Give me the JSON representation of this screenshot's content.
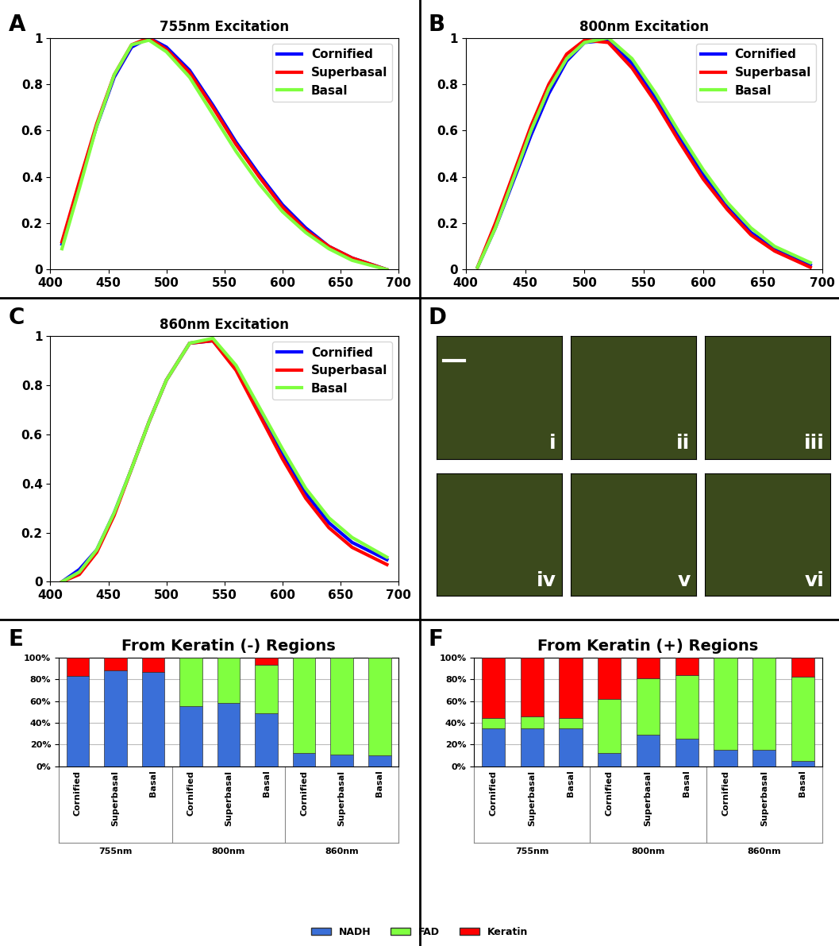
{
  "chart_data": [
    {
      "type": "line",
      "panel": "A",
      "title": "755nm Excitation",
      "x": [
        410,
        425,
        440,
        455,
        470,
        485,
        500,
        520,
        540,
        560,
        580,
        600,
        620,
        640,
        660,
        690
      ],
      "series": [
        {
          "name": "Cornified",
          "color": "#0000ff",
          "values": [
            0.11,
            0.37,
            0.62,
            0.83,
            0.96,
            1.0,
            0.96,
            0.86,
            0.71,
            0.55,
            0.41,
            0.28,
            0.18,
            0.1,
            0.05,
            0.0
          ]
        },
        {
          "name": "Superbasal",
          "color": "#ff0000",
          "values": [
            0.12,
            0.38,
            0.63,
            0.84,
            0.97,
            1.0,
            0.95,
            0.85,
            0.7,
            0.54,
            0.4,
            0.27,
            0.17,
            0.1,
            0.05,
            0.0
          ]
        },
        {
          "name": "Basal",
          "color": "#7fff3f",
          "values": [
            0.09,
            0.35,
            0.62,
            0.84,
            0.97,
            0.99,
            0.94,
            0.83,
            0.67,
            0.51,
            0.37,
            0.25,
            0.16,
            0.09,
            0.04,
            0.0
          ]
        }
      ],
      "xlim": [
        400,
        700
      ],
      "xticks": [
        400,
        450,
        500,
        550,
        600,
        650,
        700
      ],
      "ylim": [
        0,
        1
      ],
      "yticks": [
        0,
        0.2,
        0.4,
        0.6,
        0.8,
        1
      ],
      "legend": "upper right"
    },
    {
      "type": "line",
      "panel": "B",
      "title": "800nm Excitation",
      "x": [
        410,
        425,
        440,
        455,
        470,
        485,
        500,
        520,
        540,
        560,
        580,
        600,
        620,
        640,
        660,
        690
      ],
      "series": [
        {
          "name": "Cornified",
          "color": "#0000ff",
          "values": [
            0.01,
            0.18,
            0.38,
            0.58,
            0.76,
            0.9,
            0.98,
            0.99,
            0.89,
            0.74,
            0.57,
            0.41,
            0.27,
            0.16,
            0.09,
            0.02
          ]
        },
        {
          "name": "Superbasal",
          "color": "#ff0000",
          "values": [
            0.01,
            0.2,
            0.41,
            0.62,
            0.8,
            0.93,
            0.99,
            0.98,
            0.87,
            0.72,
            0.55,
            0.39,
            0.26,
            0.15,
            0.08,
            0.01
          ]
        },
        {
          "name": "Basal",
          "color": "#7fff3f",
          "values": [
            0.01,
            0.18,
            0.39,
            0.6,
            0.78,
            0.91,
            0.98,
            1.0,
            0.91,
            0.76,
            0.59,
            0.43,
            0.29,
            0.18,
            0.1,
            0.03
          ]
        }
      ],
      "xlim": [
        400,
        700
      ],
      "xticks": [
        400,
        450,
        500,
        550,
        600,
        650,
        700
      ],
      "ylim": [
        0,
        1
      ],
      "yticks": [
        0,
        0.2,
        0.4,
        0.6,
        0.8,
        1
      ],
      "legend": "upper right"
    },
    {
      "type": "line",
      "panel": "C",
      "title": "860nm Excitation",
      "x": [
        410,
        425,
        440,
        455,
        470,
        485,
        500,
        520,
        540,
        560,
        580,
        600,
        620,
        640,
        660,
        690
      ],
      "series": [
        {
          "name": "Cornified",
          "color": "#0000ff",
          "values": [
            0.0,
            0.05,
            0.13,
            0.28,
            0.46,
            0.65,
            0.82,
            0.97,
            0.98,
            0.87,
            0.7,
            0.52,
            0.36,
            0.24,
            0.16,
            0.09
          ]
        },
        {
          "name": "Superbasal",
          "color": "#ff0000",
          "values": [
            0.0,
            0.03,
            0.12,
            0.27,
            0.46,
            0.65,
            0.82,
            0.97,
            0.98,
            0.86,
            0.68,
            0.5,
            0.34,
            0.22,
            0.14,
            0.07
          ]
        },
        {
          "name": "Basal",
          "color": "#7fff3f",
          "values": [
            0.0,
            0.04,
            0.13,
            0.28,
            0.46,
            0.65,
            0.82,
            0.97,
            0.99,
            0.88,
            0.71,
            0.54,
            0.38,
            0.26,
            0.18,
            0.1
          ]
        }
      ],
      "xlim": [
        400,
        700
      ],
      "xticks": [
        400,
        450,
        500,
        550,
        600,
        650,
        700
      ],
      "ylim": [
        0,
        1
      ],
      "yticks": [
        0,
        0.2,
        0.4,
        0.6,
        0.8,
        1
      ],
      "legend": "upper right"
    },
    {
      "type": "image",
      "panel": "D",
      "image_labels": [
        "i",
        "ii",
        "iii",
        "iv",
        "v",
        "vi"
      ]
    },
    {
      "type": "bar",
      "panel": "E",
      "title": "From Keratin (-) Regions",
      "stacked": true,
      "grid": true,
      "categories": [
        "Cornified",
        "Superbasal",
        "Basal",
        "Cornified",
        "Superbasal",
        "Basal",
        "Cornified",
        "Superbasal",
        "Basal"
      ],
      "groups": [
        "755nm",
        "800nm",
        "860nm"
      ],
      "series": [
        {
          "name": "NADH",
          "color": "#3a6fd8",
          "values": [
            83,
            88,
            87,
            55,
            58,
            49,
            12,
            11,
            10
          ]
        },
        {
          "name": "FAD",
          "color": "#80ff40",
          "values": [
            0,
            0,
            0,
            45,
            42,
            44,
            88,
            89,
            90
          ]
        },
        {
          "name": "Keratin",
          "color": "#ff0000",
          "values": [
            17,
            12,
            13,
            0,
            0,
            7,
            0,
            0,
            0
          ]
        }
      ],
      "ylim": [
        0,
        100
      ],
      "yticks": [
        {
          "value": 0,
          "label": "0%"
        },
        {
          "value": 20,
          "label": "20%"
        },
        {
          "value": 40,
          "label": "40%"
        },
        {
          "value": 60,
          "label": "60%"
        },
        {
          "value": 80,
          "label": "80%"
        },
        {
          "value": 100,
          "label": "100%"
        }
      ]
    },
    {
      "type": "bar",
      "panel": "F",
      "title": "From Keratin (+) Regions",
      "stacked": true,
      "grid": true,
      "categories": [
        "Cornified",
        "Superbasal",
        "Basal",
        "Cornified",
        "Superbasal",
        "Basal",
        "Cornified",
        "Superbasal",
        "Basal"
      ],
      "groups": [
        "755nm",
        "800nm",
        "860nm"
      ],
      "series": [
        {
          "name": "NADH",
          "color": "#3a6fd8",
          "values": [
            35,
            35,
            35,
            12,
            29,
            25,
            15,
            15,
            5
          ]
        },
        {
          "name": "FAD",
          "color": "#80ff40",
          "values": [
            9,
            11,
            9,
            50,
            52,
            59,
            85,
            85,
            77
          ]
        },
        {
          "name": "Keratin",
          "color": "#ff0000",
          "values": [
            56,
            54,
            56,
            38,
            19,
            16,
            0,
            0,
            18
          ]
        }
      ],
      "ylim": [
        0,
        100
      ],
      "yticks": [
        {
          "value": 0,
          "label": "0%"
        },
        {
          "value": 20,
          "label": "20%"
        },
        {
          "value": 40,
          "label": "40%"
        },
        {
          "value": 60,
          "label": "60%"
        },
        {
          "value": 80,
          "label": "80%"
        },
        {
          "value": 100,
          "label": "100%"
        }
      ],
      "legend": "lower center"
    }
  ]
}
